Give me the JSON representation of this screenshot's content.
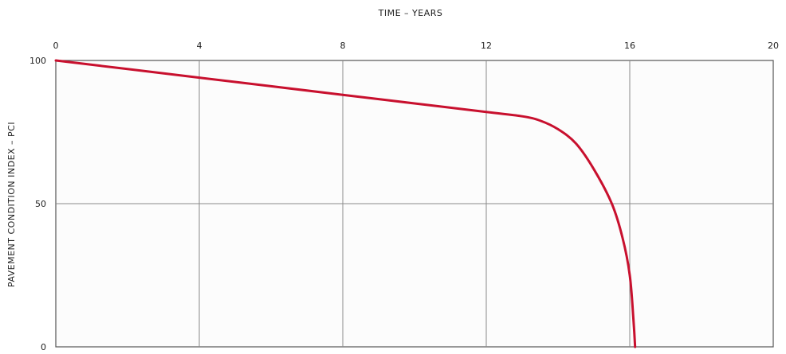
{
  "chart_data": {
    "type": "line",
    "title": "",
    "xlabel": "TIME – YEARS",
    "ylabel": "PAVEMENT CONDITION INDEX – PCI",
    "xlim": [
      0,
      20
    ],
    "ylim": [
      0,
      100
    ],
    "x_ticks": [
      0,
      4,
      8,
      12,
      16,
      20
    ],
    "y_ticks": [
      0,
      50,
      100
    ],
    "x_axis_position": "top",
    "grid": true,
    "colors": {
      "curve": "#c8102e",
      "grid": "#8a8a8a",
      "frame": "#555555"
    },
    "series": [
      {
        "x": [
          0,
          2,
          4,
          6,
          8,
          10,
          12,
          13,
          13.5,
          14,
          14.5,
          15,
          15.5,
          15.8,
          16,
          16.1,
          16.15
        ],
        "y": [
          100,
          97,
          94,
          91,
          88,
          85,
          82,
          80.5,
          79,
          76,
          71,
          62,
          50,
          38,
          25,
          10,
          0
        ]
      }
    ]
  }
}
